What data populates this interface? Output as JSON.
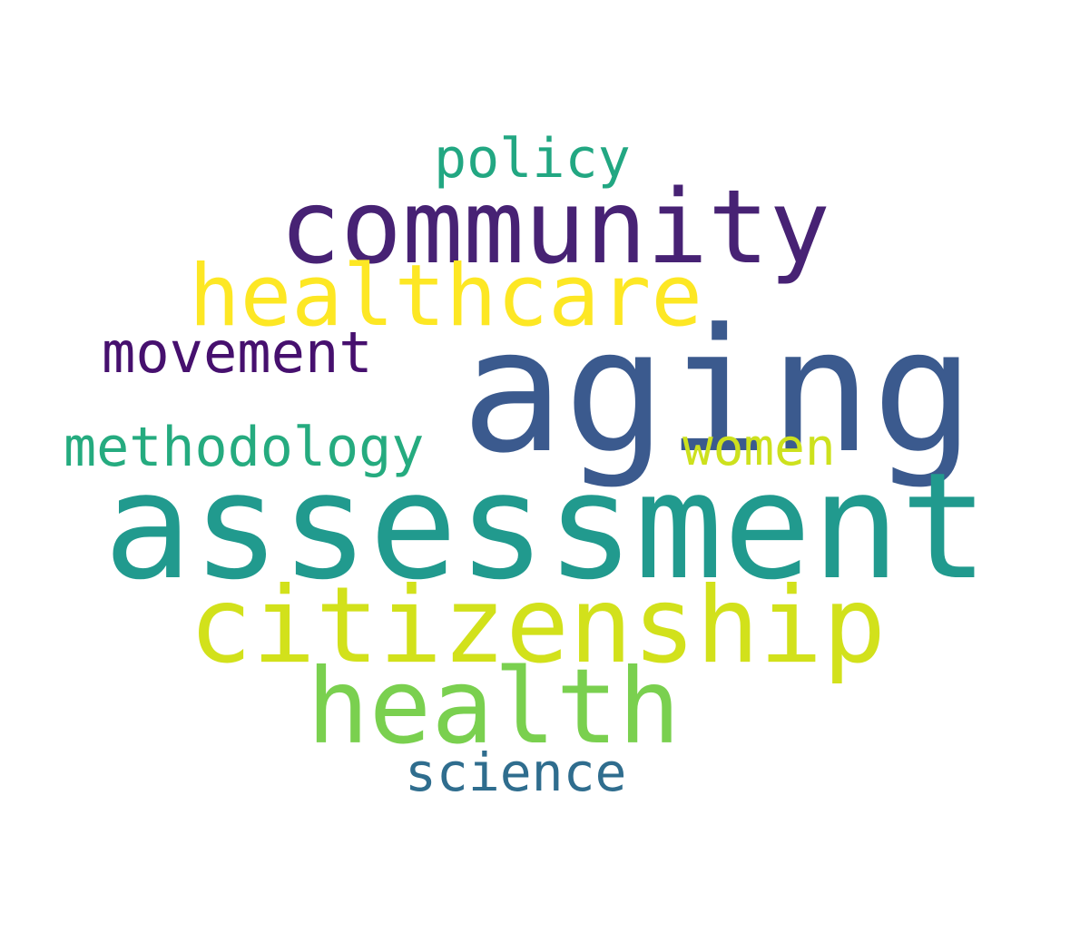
{
  "wordcloud": {
    "words": [
      {
        "text": "aging",
        "color": "#3b5a8e"
      },
      {
        "text": "assessment",
        "color": "#219a8e"
      },
      {
        "text": "community",
        "color": "#472274"
      },
      {
        "text": "citizenship",
        "color": "#d2e11b"
      },
      {
        "text": "healthcare",
        "color": "#fde724"
      },
      {
        "text": "health",
        "color": "#7ad04f"
      },
      {
        "text": "policy",
        "color": "#22a782"
      },
      {
        "text": "movement",
        "color": "#46106e"
      },
      {
        "text": "methodology",
        "color": "#25ab7f"
      },
      {
        "text": "women",
        "color": "#cde11d"
      },
      {
        "text": "science",
        "color": "#2f6d8e"
      }
    ]
  }
}
